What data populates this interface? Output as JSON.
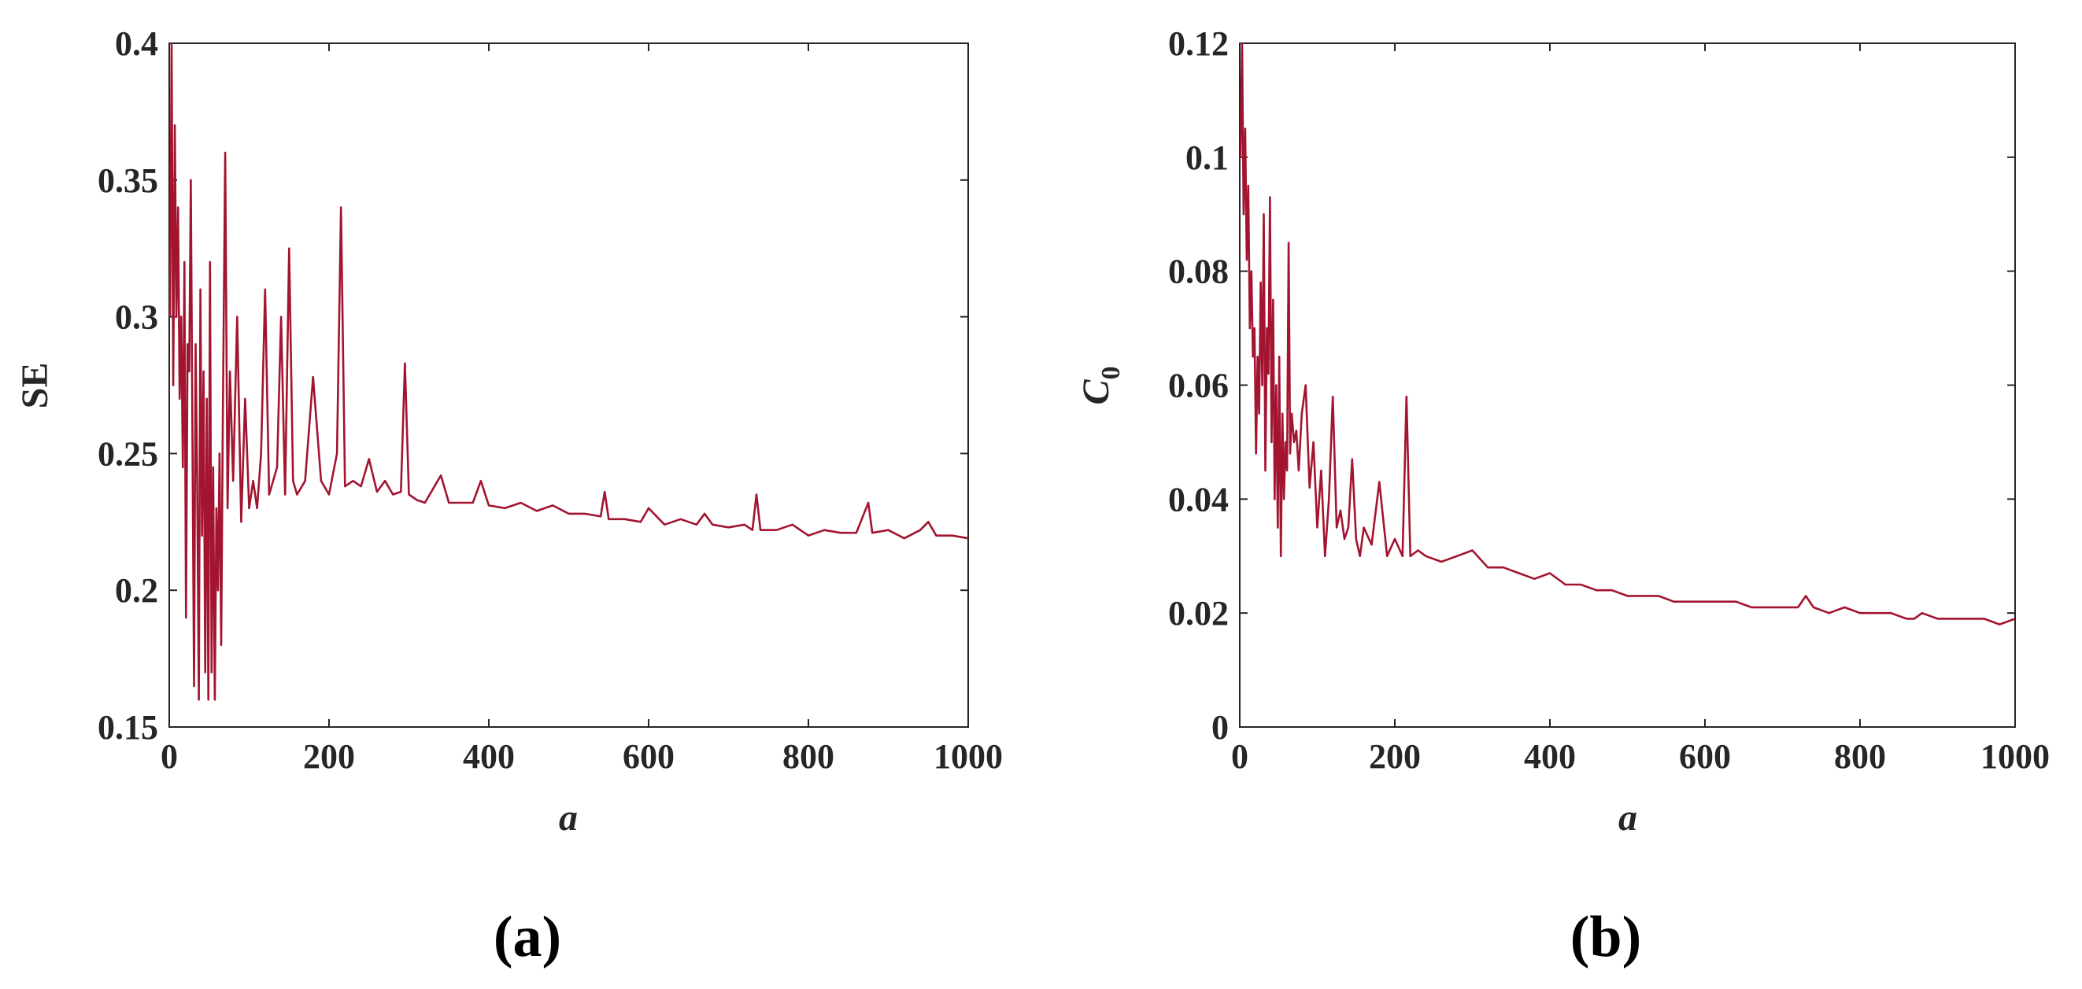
{
  "colors": {
    "series": "#A2142F",
    "axis": "#262626"
  },
  "chart_data": [
    {
      "type": "line",
      "panel_label": "(a)",
      "title": "",
      "xlabel": "a",
      "ylabel": "SE",
      "xlim": [
        0,
        1000
      ],
      "ylim": [
        0.15,
        0.4
      ],
      "xticks": [
        0,
        200,
        400,
        600,
        800,
        1000
      ],
      "xtick_labels": [
        "0",
        "200",
        "400",
        "600",
        "800",
        "1000"
      ],
      "yticks": [
        0.15,
        0.2,
        0.25,
        0.3,
        0.35,
        0.4
      ],
      "ytick_labels": [
        "0.15",
        "0.2",
        "0.25",
        "0.3",
        "0.35",
        "0.4"
      ],
      "grid": false,
      "series": [
        {
          "name": "SE",
          "x": [
            1,
            3,
            5,
            7,
            9,
            11,
            13,
            15,
            17,
            19,
            21,
            23,
            25,
            27,
            29,
            31,
            33,
            35,
            37,
            39,
            41,
            43,
            45,
            47,
            49,
            51,
            53,
            55,
            57,
            59,
            61,
            63,
            65,
            67,
            70,
            73,
            76,
            80,
            85,
            90,
            95,
            100,
            105,
            110,
            115,
            120,
            125,
            130,
            135,
            140,
            145,
            150,
            155,
            160,
            170,
            180,
            190,
            200,
            210,
            215,
            220,
            230,
            240,
            250,
            260,
            270,
            280,
            290,
            295,
            300,
            310,
            320,
            340,
            350,
            360,
            380,
            390,
            400,
            420,
            440,
            460,
            480,
            500,
            520,
            540,
            545,
            550,
            570,
            590,
            600,
            620,
            640,
            660,
            670,
            680,
            700,
            720,
            730,
            735,
            740,
            760,
            780,
            800,
            820,
            840,
            860,
            875,
            880,
            900,
            920,
            940,
            950,
            960,
            980,
            1000
          ],
          "y": [
            0.3,
            0.4,
            0.275,
            0.37,
            0.3,
            0.34,
            0.27,
            0.3,
            0.245,
            0.32,
            0.19,
            0.29,
            0.28,
            0.35,
            0.26,
            0.165,
            0.29,
            0.24,
            0.16,
            0.31,
            0.22,
            0.28,
            0.17,
            0.27,
            0.16,
            0.32,
            0.17,
            0.245,
            0.16,
            0.23,
            0.2,
            0.25,
            0.18,
            0.26,
            0.36,
            0.23,
            0.28,
            0.24,
            0.3,
            0.225,
            0.27,
            0.23,
            0.24,
            0.23,
            0.25,
            0.31,
            0.235,
            0.24,
            0.245,
            0.3,
            0.235,
            0.325,
            0.24,
            0.235,
            0.24,
            0.278,
            0.24,
            0.235,
            0.25,
            0.34,
            0.238,
            0.24,
            0.238,
            0.248,
            0.236,
            0.24,
            0.235,
            0.236,
            0.283,
            0.235,
            0.233,
            0.232,
            0.242,
            0.232,
            0.232,
            0.232,
            0.24,
            0.231,
            0.23,
            0.232,
            0.229,
            0.231,
            0.228,
            0.228,
            0.227,
            0.236,
            0.226,
            0.226,
            0.225,
            0.23,
            0.224,
            0.226,
            0.224,
            0.228,
            0.224,
            0.223,
            0.224,
            0.222,
            0.235,
            0.222,
            0.222,
            0.224,
            0.22,
            0.222,
            0.221,
            0.221,
            0.232,
            0.221,
            0.222,
            0.219,
            0.222,
            0.225,
            0.22,
            0.22,
            0.219
          ]
        }
      ]
    },
    {
      "type": "line",
      "panel_label": "(b)",
      "title": "",
      "xlabel": "a",
      "ylabel": "C",
      "ylabel_subscript": "0",
      "xlim": [
        0,
        1000
      ],
      "ylim": [
        0,
        0.12
      ],
      "xticks": [
        0,
        200,
        400,
        600,
        800,
        1000
      ],
      "xtick_labels": [
        "0",
        "200",
        "400",
        "600",
        "800",
        "1000"
      ],
      "yticks": [
        0,
        0.02,
        0.04,
        0.06,
        0.08,
        0.1,
        0.12
      ],
      "ytick_labels": [
        "0",
        "0.02",
        "0.04",
        "0.06",
        "0.08",
        "0.1",
        "0.12"
      ],
      "grid": false,
      "series": [
        {
          "name": "C0",
          "x": [
            1,
            3,
            5,
            7,
            9,
            11,
            13,
            15,
            17,
            19,
            21,
            23,
            25,
            27,
            29,
            31,
            33,
            35,
            37,
            39,
            41,
            43,
            45,
            47,
            49,
            51,
            53,
            55,
            57,
            59,
            61,
            63,
            65,
            67,
            70,
            73,
            76,
            80,
            85,
            90,
            95,
            100,
            105,
            110,
            115,
            120,
            125,
            130,
            135,
            140,
            145,
            150,
            155,
            160,
            170,
            180,
            190,
            200,
            210,
            215,
            220,
            230,
            240,
            260,
            280,
            300,
            320,
            340,
            360,
            380,
            400,
            420,
            440,
            460,
            480,
            500,
            520,
            540,
            560,
            580,
            600,
            620,
            640,
            660,
            680,
            700,
            720,
            730,
            740,
            760,
            780,
            800,
            820,
            840,
            860,
            870,
            880,
            900,
            920,
            940,
            960,
            980,
            1000
          ],
          "y": [
            0.1,
            0.12,
            0.09,
            0.105,
            0.082,
            0.095,
            0.07,
            0.08,
            0.065,
            0.07,
            0.048,
            0.065,
            0.055,
            0.078,
            0.06,
            0.09,
            0.045,
            0.07,
            0.062,
            0.093,
            0.05,
            0.075,
            0.04,
            0.06,
            0.035,
            0.065,
            0.03,
            0.055,
            0.04,
            0.05,
            0.045,
            0.085,
            0.048,
            0.055,
            0.05,
            0.052,
            0.045,
            0.055,
            0.06,
            0.042,
            0.05,
            0.035,
            0.045,
            0.03,
            0.04,
            0.058,
            0.035,
            0.038,
            0.033,
            0.035,
            0.047,
            0.033,
            0.03,
            0.035,
            0.032,
            0.043,
            0.03,
            0.033,
            0.03,
            0.058,
            0.03,
            0.031,
            0.03,
            0.029,
            0.03,
            0.031,
            0.028,
            0.028,
            0.027,
            0.026,
            0.027,
            0.025,
            0.025,
            0.024,
            0.024,
            0.023,
            0.023,
            0.023,
            0.022,
            0.022,
            0.022,
            0.022,
            0.022,
            0.021,
            0.021,
            0.021,
            0.021,
            0.023,
            0.021,
            0.02,
            0.021,
            0.02,
            0.02,
            0.02,
            0.019,
            0.019,
            0.02,
            0.019,
            0.019,
            0.019,
            0.019,
            0.018,
            0.019
          ]
        }
      ]
    }
  ]
}
